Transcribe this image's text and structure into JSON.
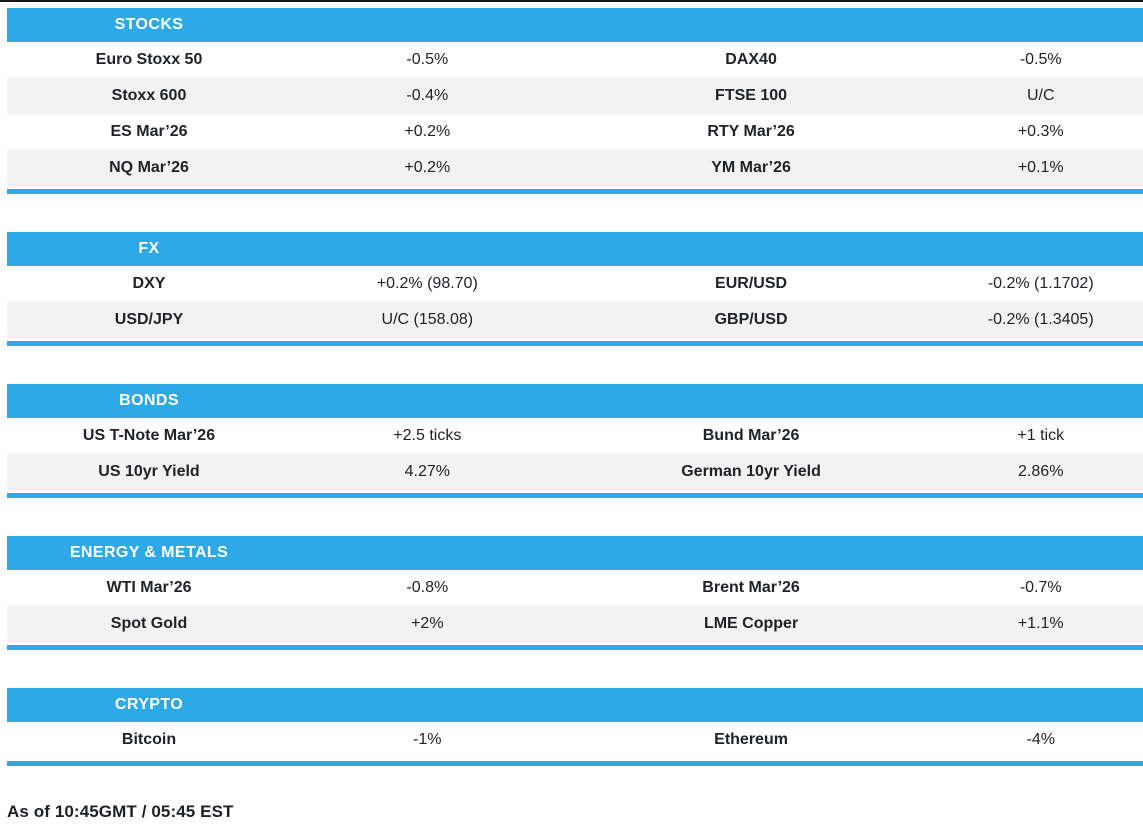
{
  "colors": {
    "accent": "#2ea9e8",
    "row_alt": "#f2f2f2",
    "text": "#202327",
    "top_line": "#191919",
    "header_text": "#ffffff"
  },
  "footer": {
    "as_of": "As of 10:45GMT / 05:45 EST"
  },
  "sections": [
    {
      "title": "STOCKS",
      "rows": [
        [
          "Euro Stoxx 50",
          "-0.5%",
          "DAX40",
          "-0.5%"
        ],
        [
          "Stoxx 600",
          "-0.4%",
          "FTSE 100",
          "U/C"
        ],
        [
          "ES Mar’26",
          "+0.2%",
          "RTY Mar’26",
          "+0.3%"
        ],
        [
          "NQ Mar’26",
          "+0.2%",
          "YM Mar’26",
          "+0.1%"
        ]
      ]
    },
    {
      "title": "FX",
      "rows": [
        [
          "DXY",
          "+0.2% (98.70)",
          "EUR/USD",
          "-0.2% (1.1702)"
        ],
        [
          "USD/JPY",
          "U/C (158.08)",
          "GBP/USD",
          "-0.2% (1.3405)"
        ]
      ]
    },
    {
      "title": "BONDS",
      "rows": [
        [
          "US T-Note Mar’26",
          "+2.5 ticks",
          "Bund Mar’26",
          "+1 tick"
        ],
        [
          "US 10yr Yield",
          "4.27%",
          "German 10yr Yield",
          "2.86%"
        ]
      ]
    },
    {
      "title": "ENERGY & METALS",
      "rows": [
        [
          "WTI Mar’26",
          "-0.8%",
          "Brent Mar’26",
          "-0.7%"
        ],
        [
          "Spot Gold",
          "+2%",
          "LME Copper",
          "+1.1%"
        ]
      ]
    },
    {
      "title": "CRYPTO",
      "rows": [
        [
          "Bitcoin",
          "-1%",
          "Ethereum",
          "-4%"
        ]
      ]
    }
  ]
}
